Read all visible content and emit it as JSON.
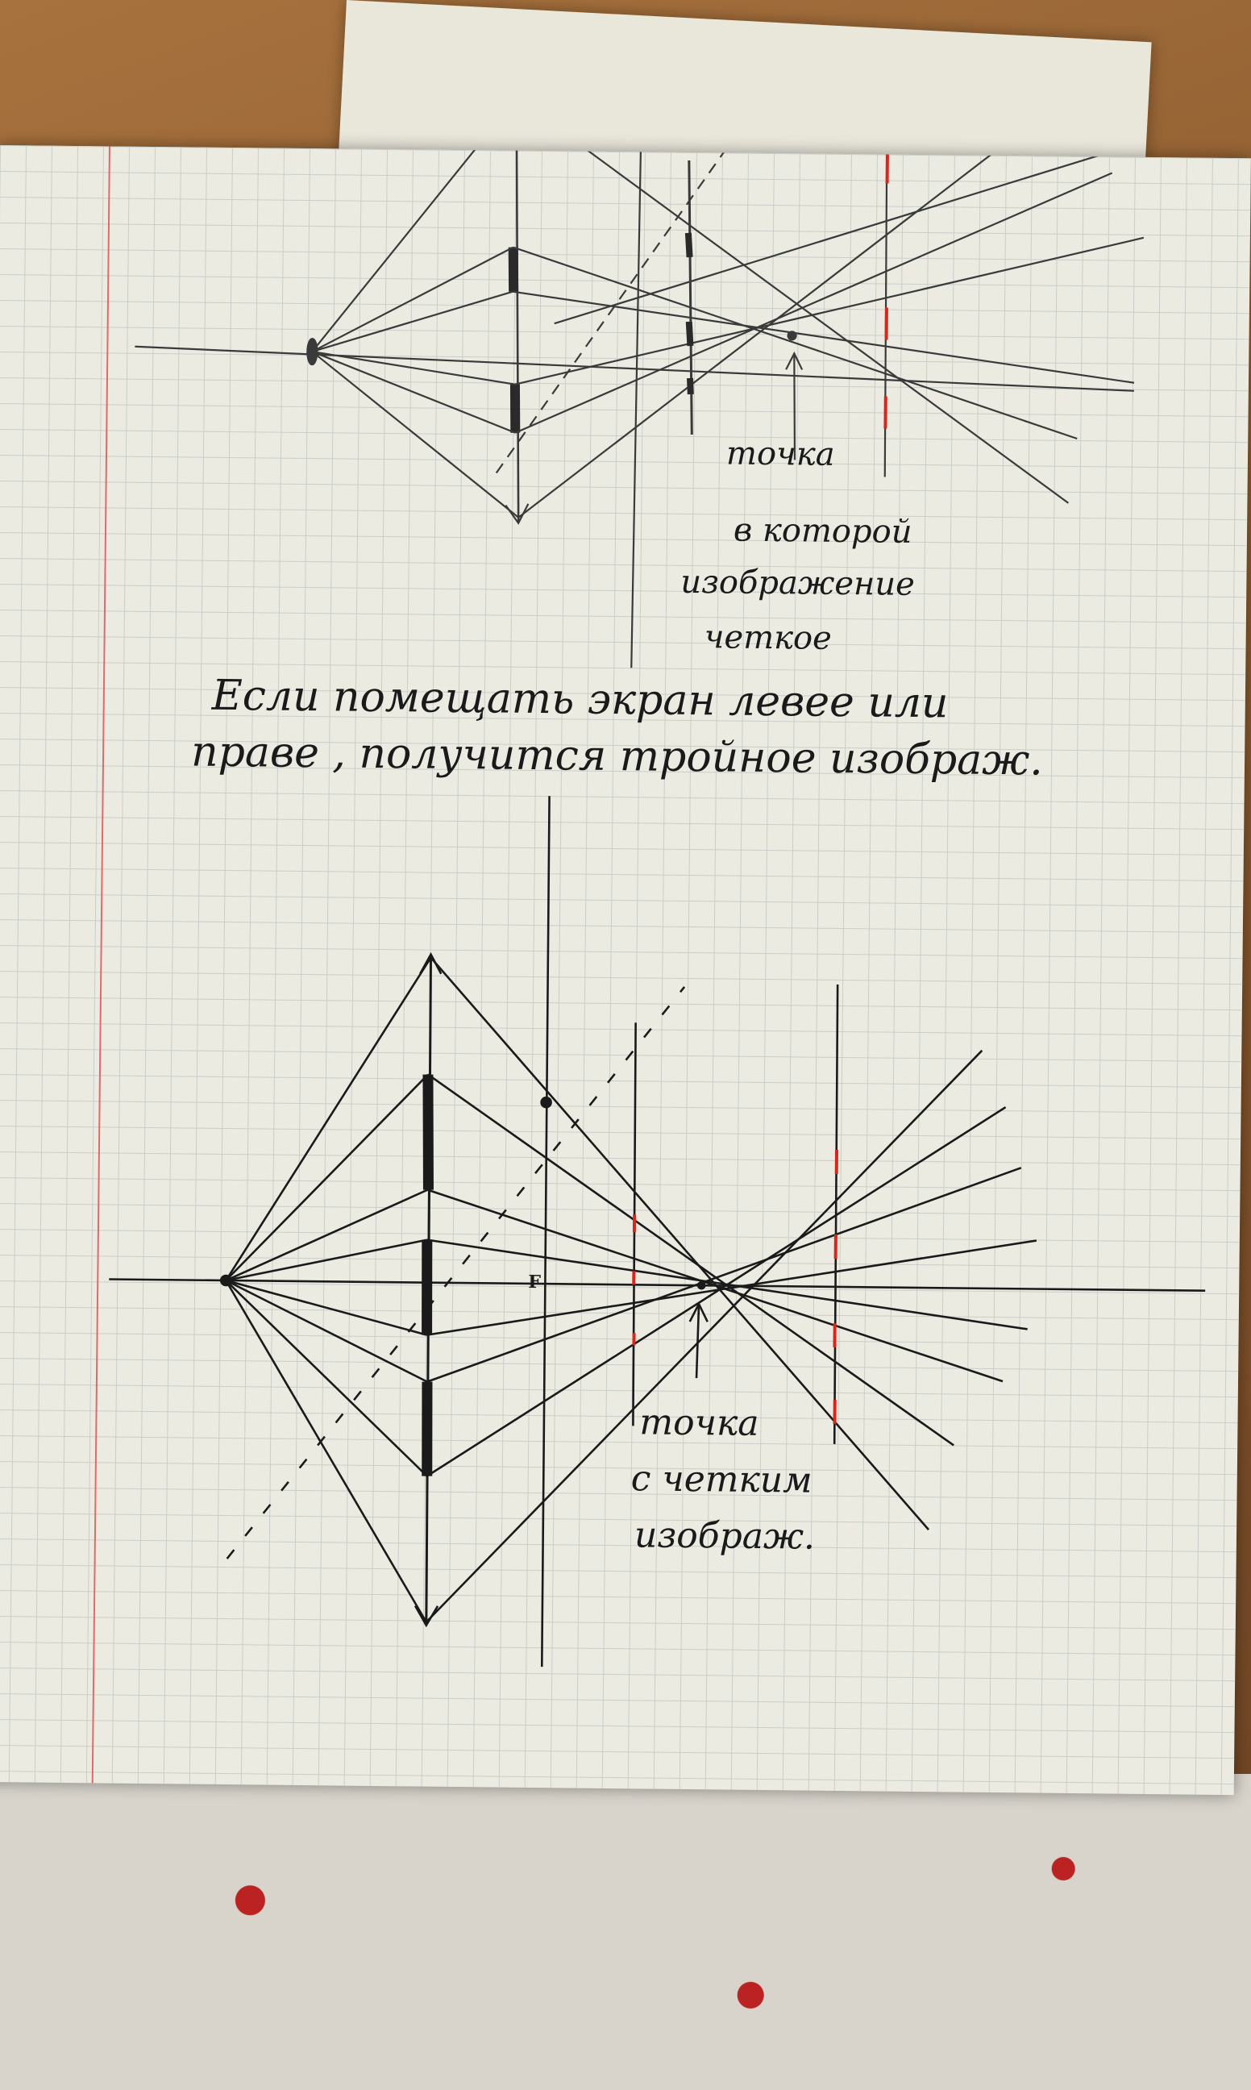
{
  "diagram_top": {
    "label_lines": [
      "точка",
      "в которой",
      "изображение",
      "четкое"
    ]
  },
  "caption": {
    "line1": "Если   помещать   экран   левее   или",
    "line2": "праве ,   получится   тройное   изображ."
  },
  "diagram_bottom": {
    "focus_label": "F",
    "label_lines": [
      "точка",
      "с четким",
      "изображ."
    ]
  },
  "colors": {
    "ink": "#1a1a1a",
    "pencil": "#3a3a3a",
    "red": "#d9261c",
    "grid": "#c9cec9",
    "margin": "#e06a6a"
  }
}
